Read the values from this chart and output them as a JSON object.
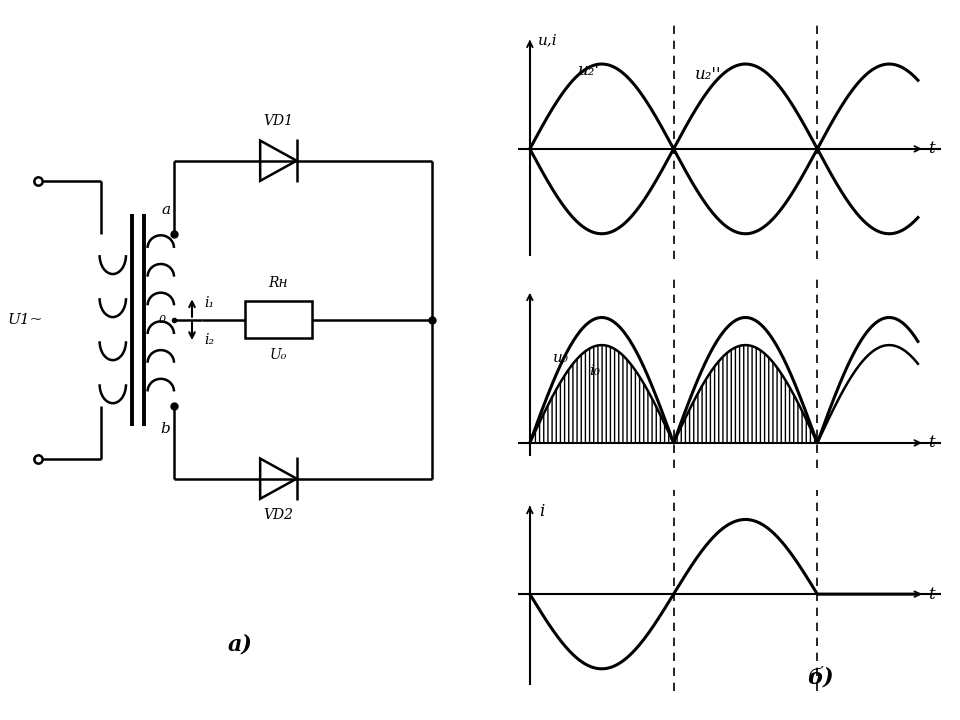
{
  "bg_color": "#ffffff",
  "line_color": "#000000",
  "fig_width": 9.6,
  "fig_height": 7.2,
  "dpi": 100,
  "circuit_label": "а)",
  "graph_label": "б)",
  "u2_prime_label": "u₂'",
  "u2_double_label": "u₂''",
  "u0_label": "u₀",
  "i0_label": "i₀",
  "ui_label": "u,i",
  "i_label": "i",
  "t_label": "t",
  "vd1_label": "VD1",
  "vd2_label": "VD2",
  "rh_label": "Rн",
  "u0_circuit_label": "U₀",
  "u1_label": "U1~",
  "a_label": "a",
  "b_label": "b",
  "i1_label": "i₁",
  "i2_label": "i₂",
  "o_label": "0"
}
